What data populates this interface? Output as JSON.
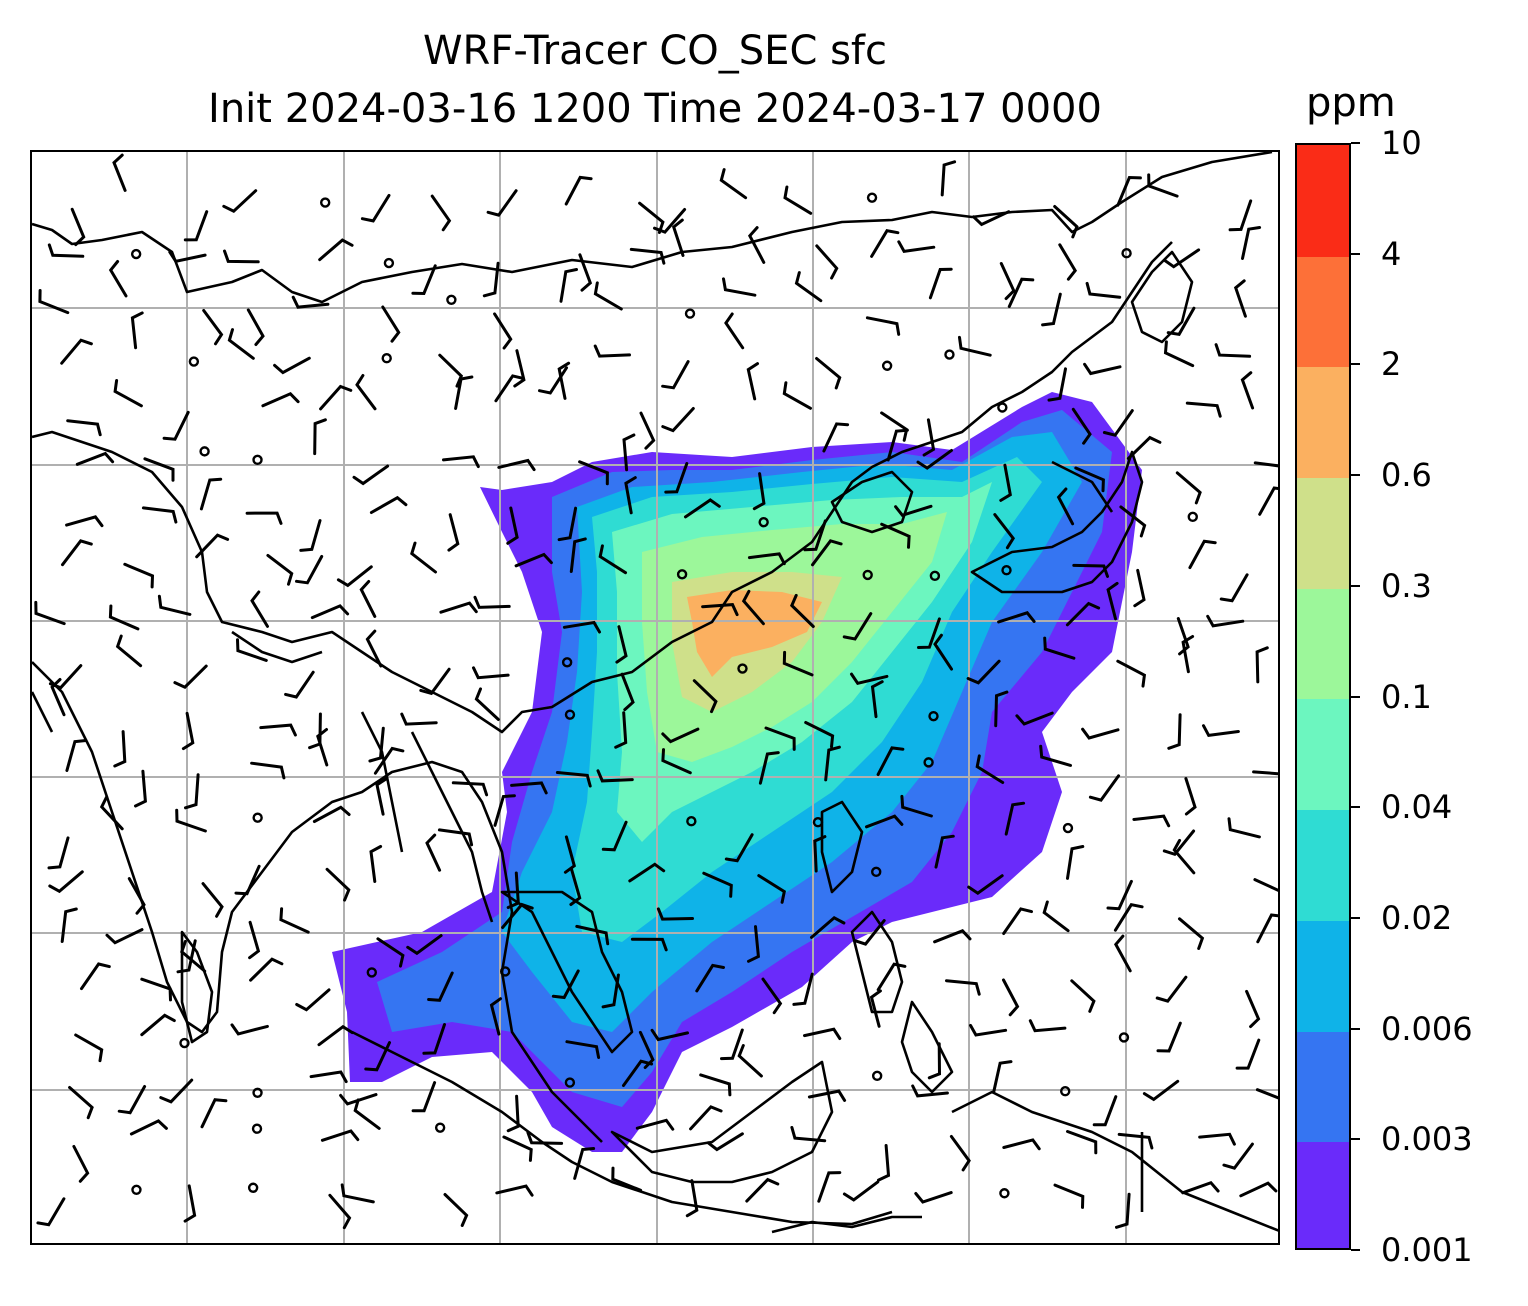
{
  "title": {
    "line1": "WRF-Tracer CO_SEC sfc",
    "line2": "Init 2024-03-16 1200 Time 2024-03-17 0000"
  },
  "colorbar": {
    "unit": "ppm",
    "levels": [
      "0.001",
      "0.003",
      "0.006",
      "0.02",
      "0.04",
      "0.1",
      "0.3",
      "0.6",
      "2",
      "4",
      "10"
    ],
    "colors": [
      "#6a2bfa",
      "#3575f2",
      "#0fb3e8",
      "#2fdcd3",
      "#6cf6bf",
      "#9cf79a",
      "#cfe08a",
      "#fbb060",
      "#fd7038",
      "#fa2c17"
    ]
  },
  "map": {
    "layers": [
      "coastlines",
      "borders",
      "gridlines",
      "tracer-shading",
      "wind-barbs"
    ],
    "line_color": "#000000",
    "grid_color": "#b0b0b0"
  }
}
